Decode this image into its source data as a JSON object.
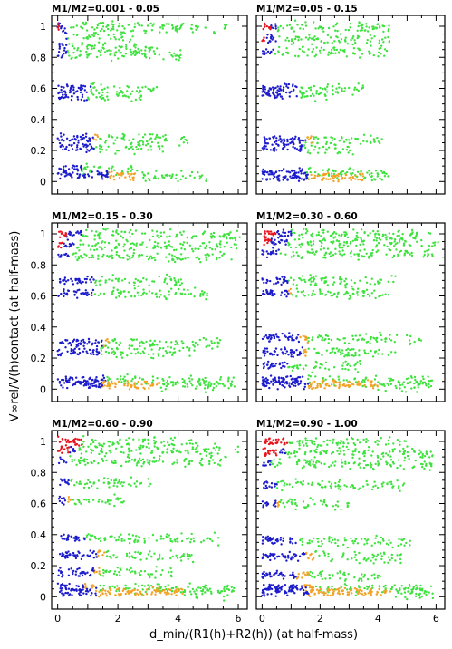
{
  "figure": {
    "xlabel": "d_min/(R1(h)+R2(h)) (at half-mass)",
    "ylabel": "V∞rel/V(h)contact (at half-mass)"
  },
  "colors": {
    "red": "#e8141c",
    "blue": "#1c1ccc",
    "green": "#3fe23f",
    "orange": "#f2a225"
  },
  "chart_data": [
    {
      "type": "scatter",
      "title": "M1/M2=0.001 - 0.05",
      "xlim": [
        -0.2,
        6.3
      ],
      "ylim": [
        -0.08,
        1.07
      ],
      "xticks": [
        0,
        2,
        4,
        6
      ],
      "yticks": [
        0,
        0.2,
        0.4,
        0.6,
        0.8,
        1
      ],
      "bands": [
        {
          "y": 1.0,
          "blue": [
            0.0,
            0.3
          ],
          "red": [
            0.0,
            0.05
          ],
          "green": [
            0.3,
            5.7
          ]
        },
        {
          "y": 0.95,
          "blue": [
            0.1,
            0.3
          ],
          "green": [
            0.3,
            2.5
          ]
        },
        {
          "y": 0.87,
          "blue": [
            0.0,
            0.3
          ],
          "green": [
            0.3,
            3.4
          ]
        },
        {
          "y": 0.82,
          "blue": [
            0.0,
            0.3
          ],
          "green": [
            0.3,
            4.2
          ]
        },
        {
          "y": 0.6,
          "blue": [
            0.0,
            1.1
          ],
          "green": [
            1.1,
            3.3
          ]
        },
        {
          "y": 0.55,
          "blue": [
            0.0,
            1.0
          ],
          "green": [
            1.0,
            2.8
          ]
        },
        {
          "y": 0.28,
          "blue": [
            0.0,
            1.2
          ],
          "orange": [
            1.2,
            1.35
          ],
          "green": [
            1.35,
            4.4
          ]
        },
        {
          "y": 0.22,
          "blue": [
            0.0,
            1.2
          ],
          "green": [
            1.2,
            3.5
          ]
        },
        {
          "y": 0.08,
          "blue": [
            0.0,
            0.8
          ],
          "green": [
            0.8,
            2.5
          ]
        },
        {
          "y": 0.04,
          "blue": [
            0.0,
            1.7
          ],
          "orange": [
            1.7,
            2.6
          ],
          "green": [
            2.6,
            5.0
          ]
        }
      ]
    },
    {
      "type": "scatter",
      "title": "M1/M2=0.05 - 0.15",
      "xlim": [
        -0.2,
        6.3
      ],
      "ylim": [
        -0.08,
        1.07
      ],
      "xticks": [
        0,
        2,
        4,
        6
      ],
      "yticks": [
        0,
        0.2,
        0.4,
        0.6,
        0.8,
        1
      ],
      "bands": [
        {
          "y": 1.0,
          "red": [
            0.0,
            0.3
          ],
          "blue": [
            0.3,
            0.5
          ],
          "green": [
            0.5,
            4.4
          ]
        },
        {
          "y": 0.92,
          "red": [
            0.0,
            0.1
          ],
          "blue": [
            0.1,
            0.5
          ],
          "green": [
            0.5,
            4.4
          ]
        },
        {
          "y": 0.84,
          "blue": [
            0.0,
            0.4
          ],
          "green": [
            0.4,
            4.4
          ]
        },
        {
          "y": 0.6,
          "blue": [
            0.0,
            1.3
          ],
          "green": [
            1.3,
            3.5
          ]
        },
        {
          "y": 0.56,
          "blue": [
            0.0,
            1.2
          ],
          "green": [
            1.2,
            2.6
          ]
        },
        {
          "y": 0.27,
          "blue": [
            0.0,
            1.5
          ],
          "orange": [
            1.5,
            1.7
          ],
          "green": [
            1.7,
            4.2
          ]
        },
        {
          "y": 0.22,
          "blue": [
            0.0,
            1.4
          ],
          "green": [
            1.4,
            3.2
          ]
        },
        {
          "y": 0.06,
          "blue": [
            0.0,
            1.5
          ],
          "green": [
            1.5,
            4.4
          ]
        },
        {
          "y": 0.03,
          "blue": [
            0.0,
            1.6
          ],
          "orange": [
            1.6,
            3.5
          ],
          "green": [
            3.5,
            4.3
          ]
        }
      ]
    },
    {
      "type": "scatter",
      "title": "M1/M2=0.15 - 0.30",
      "xlim": [
        -0.2,
        6.3
      ],
      "ylim": [
        -0.08,
        1.07
      ],
      "xticks": [
        0,
        2,
        4,
        6
      ],
      "yticks": [
        0,
        0.2,
        0.4,
        0.6,
        0.8,
        1
      ],
      "bands": [
        {
          "y": 1.0,
          "red": [
            0.0,
            0.3
          ],
          "blue": [
            0.3,
            0.8
          ],
          "green": [
            0.8,
            6.1
          ]
        },
        {
          "y": 0.93,
          "red": [
            0.0,
            0.2
          ],
          "blue": [
            0.2,
            0.6
          ],
          "green": [
            0.6,
            6.0
          ]
        },
        {
          "y": 0.86,
          "blue": [
            0.0,
            0.4
          ],
          "green": [
            0.4,
            5.8
          ]
        },
        {
          "y": 0.7,
          "blue": [
            0.0,
            1.2
          ],
          "green": [
            1.2,
            4.2
          ]
        },
        {
          "y": 0.62,
          "blue": [
            0.0,
            1.2
          ],
          "green": [
            1.2,
            5.0
          ]
        },
        {
          "y": 0.3,
          "blue": [
            0.0,
            1.5
          ],
          "orange": [
            1.5,
            1.7
          ],
          "green": [
            1.7,
            5.4
          ]
        },
        {
          "y": 0.24,
          "blue": [
            0.0,
            1.4
          ],
          "green": [
            1.4,
            4.6
          ]
        },
        {
          "y": 0.06,
          "blue": [
            0.0,
            1.6
          ],
          "green": [
            1.6,
            5.9
          ]
        },
        {
          "y": 0.03,
          "blue": [
            0.0,
            1.5
          ],
          "orange": [
            1.5,
            3.4
          ],
          "green": [
            3.4,
            5.9
          ]
        }
      ]
    },
    {
      "type": "scatter",
      "title": "M1/M2=0.30 - 0.60",
      "xlim": [
        -0.2,
        6.3
      ],
      "ylim": [
        -0.08,
        1.07
      ],
      "xticks": [
        0,
        2,
        4,
        6
      ],
      "yticks": [
        0,
        0.2,
        0.4,
        0.6,
        0.8,
        1
      ],
      "bands": [
        {
          "y": 1.0,
          "red": [
            0.0,
            0.5
          ],
          "blue": [
            0.5,
            1.0
          ],
          "green": [
            1.0,
            6.0
          ]
        },
        {
          "y": 0.95,
          "red": [
            0.0,
            0.3
          ],
          "blue": [
            0.3,
            0.9
          ],
          "green": [
            0.9,
            6.1
          ]
        },
        {
          "y": 0.88,
          "blue": [
            0.0,
            0.6
          ],
          "green": [
            0.6,
            5.9
          ]
        },
        {
          "y": 0.7,
          "blue": [
            0.0,
            0.9
          ],
          "green": [
            0.9,
            4.6
          ]
        },
        {
          "y": 0.62,
          "blue": [
            0.0,
            0.9
          ],
          "orange": [
            0.9,
            1.0
          ],
          "green": [
            1.0,
            4.4
          ]
        },
        {
          "y": 0.33,
          "blue": [
            0.0,
            1.3
          ],
          "orange": [
            1.3,
            1.6
          ],
          "green": [
            1.6,
            5.5
          ]
        },
        {
          "y": 0.24,
          "blue": [
            0.0,
            1.4
          ],
          "orange": [
            1.4,
            1.6
          ],
          "green": [
            1.6,
            4.6
          ]
        },
        {
          "y": 0.15,
          "blue": [
            0.0,
            0.9
          ],
          "green": [
            0.9,
            3.4
          ]
        },
        {
          "y": 0.06,
          "blue": [
            0.0,
            1.5
          ],
          "green": [
            1.5,
            5.9
          ]
        },
        {
          "y": 0.03,
          "blue": [
            0.0,
            1.6
          ],
          "orange": [
            1.6,
            4.0
          ],
          "green": [
            4.0,
            5.9
          ]
        }
      ]
    },
    {
      "type": "scatter",
      "title": "M1/M2=0.60 - 0.90",
      "xlim": [
        -0.2,
        6.3
      ],
      "ylim": [
        -0.08,
        1.07
      ],
      "xticks": [
        0,
        2,
        4,
        6
      ],
      "yticks": [
        0,
        0.2,
        0.4,
        0.6,
        0.8,
        1
      ],
      "bands": [
        {
          "y": 1.0,
          "red": [
            0.0,
            0.8
          ],
          "green": [
            0.8,
            4.6
          ]
        },
        {
          "y": 0.95,
          "red": [
            0.0,
            0.4
          ],
          "blue": [
            0.4,
            0.6
          ],
          "green": [
            0.6,
            6.0
          ]
        },
        {
          "y": 0.88,
          "blue": [
            0.0,
            0.3
          ],
          "green": [
            0.3,
            5.5
          ]
        },
        {
          "y": 0.74,
          "blue": [
            0.0,
            0.4
          ],
          "green": [
            0.4,
            3.2
          ]
        },
        {
          "y": 0.62,
          "blue": [
            0.0,
            0.3
          ],
          "orange": [
            0.3,
            0.45
          ],
          "green": [
            0.45,
            2.2
          ]
        },
        {
          "y": 0.38,
          "blue": [
            0.0,
            0.9
          ],
          "green": [
            0.9,
            5.4
          ]
        },
        {
          "y": 0.27,
          "blue": [
            0.0,
            1.3
          ],
          "orange": [
            1.3,
            1.6
          ],
          "green": [
            1.6,
            4.5
          ]
        },
        {
          "y": 0.16,
          "blue": [
            0.0,
            1.2
          ],
          "orange": [
            1.2,
            1.4
          ],
          "green": [
            1.4,
            3.8
          ]
        },
        {
          "y": 0.06,
          "blue": [
            0.0,
            0.9
          ],
          "orange": [
            0.9,
            1.3
          ],
          "green": [
            1.3,
            5.9
          ]
        },
        {
          "y": 0.03,
          "blue": [
            0.0,
            1.3
          ],
          "orange": [
            1.3,
            4.2
          ],
          "green": [
            4.2,
            5.9
          ]
        }
      ]
    },
    {
      "type": "scatter",
      "title": "M1/M2=0.90 - 1.00",
      "xlim": [
        -0.2,
        6.3
      ],
      "ylim": [
        -0.08,
        1.07
      ],
      "xticks": [
        0,
        2,
        4,
        6
      ],
      "yticks": [
        0,
        0.2,
        0.4,
        0.6,
        0.8,
        1
      ],
      "bands": [
        {
          "y": 1.0,
          "red": [
            0.0,
            0.9
          ],
          "green": [
            0.9,
            5.0
          ]
        },
        {
          "y": 0.93,
          "red": [
            0.0,
            0.6
          ],
          "blue": [
            0.6,
            0.8
          ],
          "green": [
            0.8,
            6.0
          ]
        },
        {
          "y": 0.86,
          "blue": [
            0.0,
            0.3
          ],
          "green": [
            0.3,
            5.9
          ]
        },
        {
          "y": 0.72,
          "blue": [
            0.0,
            0.5
          ],
          "green": [
            0.5,
            5.0
          ]
        },
        {
          "y": 0.6,
          "blue": [
            0.0,
            0.5
          ],
          "orange": [
            0.5,
            0.6
          ],
          "green": [
            0.6,
            3.0
          ]
        },
        {
          "y": 0.36,
          "blue": [
            0.0,
            1.2
          ],
          "green": [
            1.2,
            5.2
          ]
        },
        {
          "y": 0.26,
          "blue": [
            0.0,
            1.5
          ],
          "orange": [
            1.5,
            1.8
          ],
          "green": [
            1.8,
            4.8
          ]
        },
        {
          "y": 0.14,
          "blue": [
            0.0,
            1.2
          ],
          "orange": [
            1.2,
            1.6
          ],
          "green": [
            1.6,
            4.1
          ]
        },
        {
          "y": 0.06,
          "blue": [
            0.0,
            1.4
          ],
          "orange": [
            1.4,
            1.8
          ],
          "green": [
            1.8,
            5.9
          ]
        },
        {
          "y": 0.03,
          "blue": [
            0.0,
            1.6
          ],
          "orange": [
            1.6,
            4.5
          ],
          "green": [
            4.5,
            5.9
          ]
        }
      ]
    }
  ]
}
